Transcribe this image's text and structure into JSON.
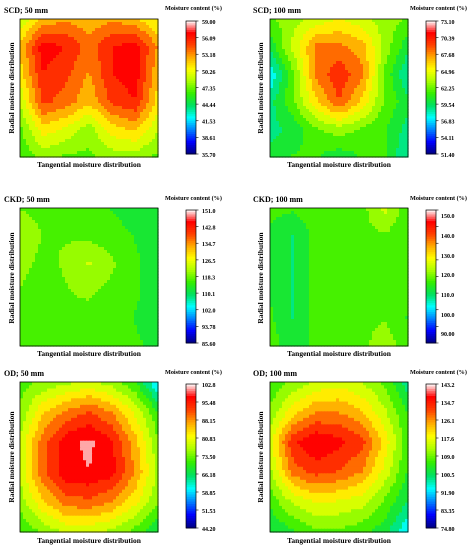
{
  "figure": {
    "colorbar_colors": [
      "#000080",
      "#0000ff",
      "#0080ff",
      "#00ffff",
      "#00e060",
      "#33ee00",
      "#aaff00",
      "#ffff00",
      "#ffaa00",
      "#ff4000",
      "#ff0000",
      "#ffffff"
    ]
  },
  "chart_data": [
    {
      "type": "heatmap",
      "title": "SCD; 50 mm",
      "xlabel": "Tangential  moisture distribution",
      "ylabel": "Radial moisture distribution",
      "colorbar_title": "Moisture content (%)",
      "colorbar_ticks": [
        "59.00",
        "56.09",
        "53.18",
        "50.26",
        "47.35",
        "44.44",
        "41.53",
        "38.61",
        "35.70"
      ],
      "zlim": [
        35.7,
        59.0
      ],
      "grid": [
        [
          49,
          52,
          53,
          52,
          53,
          52,
          50
        ],
        [
          52,
          57,
          56,
          54,
          56,
          57,
          53
        ],
        [
          51,
          56,
          55,
          53,
          56,
          57,
          52
        ],
        [
          49,
          55,
          54,
          52,
          55,
          56,
          51
        ],
        [
          47,
          51,
          50,
          48,
          51,
          52,
          49
        ],
        [
          46,
          48,
          47,
          47,
          48,
          48,
          47
        ]
      ]
    },
    {
      "type": "heatmap",
      "title": "SCD; 100 mm",
      "xlabel": "Tangential  moisture distribution",
      "ylabel": "Radial moisture distribution",
      "colorbar_title": "Moisture content (%)",
      "colorbar_ticks": [
        "73.10",
        "70.39",
        "67.68",
        "64.96",
        "62.25",
        "59.54",
        "56.83",
        "54.11",
        "51.40"
      ],
      "zlim": [
        51.4,
        73.1
      ],
      "grid": [
        [
          62,
          63,
          64,
          65,
          64,
          63,
          62
        ],
        [
          60,
          64,
          68,
          68,
          67,
          63,
          60
        ],
        [
          57,
          62,
          68,
          70,
          68,
          62,
          58
        ],
        [
          59,
          62,
          66,
          69,
          66,
          62,
          60
        ],
        [
          59,
          60,
          62,
          63,
          62,
          61,
          59
        ],
        [
          60,
          61,
          61,
          60,
          61,
          61,
          58
        ]
      ]
    },
    {
      "type": "heatmap",
      "title": "CKD; 50 mm",
      "xlabel": "Tangential  moisture distribution",
      "ylabel": "Radial moisture distribution",
      "colorbar_title": "Moisture content (%)",
      "colorbar_ticks": [
        "151.0",
        "142.8",
        "134.7",
        "126.5",
        "118.3",
        "110.1",
        "102.0",
        "93.78",
        "85.60"
      ],
      "zlim": [
        85.6,
        151.0
      ],
      "grid": [
        [
          118,
          117,
          117,
          116,
          114,
          112,
          110
        ],
        [
          122,
          118,
          118,
          117,
          116,
          114,
          111
        ],
        [
          120,
          117,
          119,
          123,
          119,
          115,
          112
        ],
        [
          118,
          116,
          118,
          119,
          117,
          115,
          112
        ],
        [
          116,
          117,
          118,
          117,
          116,
          114,
          112
        ],
        [
          115,
          117,
          118,
          118,
          117,
          115,
          113
        ]
      ]
    },
    {
      "type": "heatmap",
      "title": "CKD; 100 mm",
      "xlabel": "Tangential  moisture distribution",
      "ylabel": "Radial moisture distribution",
      "colorbar_title": "Moisture content (%)",
      "colorbar_ticks": [
        "150.0",
        "140.0",
        "130.0",
        "120.0",
        "110.0",
        "100.0",
        "90.00"
      ],
      "zlim": [
        85.0,
        152.0
      ],
      "grid": [
        [
          116,
          115,
          117,
          117,
          117,
          124,
          116
        ],
        [
          113,
          110,
          116,
          117,
          117,
          118,
          115
        ],
        [
          114,
          110,
          116,
          117,
          117,
          117,
          115
        ],
        [
          114,
          110,
          116,
          117,
          117,
          117,
          115
        ],
        [
          115,
          110,
          116,
          117,
          117,
          118,
          114
        ],
        [
          117,
          111,
          116,
          117,
          117,
          122,
          115
        ]
      ]
    },
    {
      "type": "heatmap",
      "title": "OD; 50 mm",
      "xlabel": "Tangential  moisture distribution",
      "ylabel": "Radial moisture distribution",
      "colorbar_title": "Moisture content (%)",
      "colorbar_ticks": [
        "102.8",
        "95.48",
        "88.15",
        "80.83",
        "73.50",
        "66.18",
        "58.85",
        "51.53",
        "44.20"
      ],
      "zlim": [
        44.2,
        102.8
      ],
      "grid": [
        [
          72,
          74,
          76,
          78,
          75,
          70,
          58
        ],
        [
          74,
          84,
          89,
          92,
          88,
          80,
          70
        ],
        [
          78,
          90,
          98,
          100,
          96,
          86,
          74
        ],
        [
          78,
          91,
          98,
          99,
          97,
          88,
          76
        ],
        [
          75,
          84,
          90,
          91,
          88,
          82,
          74
        ],
        [
          70,
          74,
          78,
          78,
          76,
          72,
          66
        ]
      ]
    },
    {
      "type": "heatmap",
      "title": "OD; 100 mm",
      "xlabel": "Tangential  moisture distribution",
      "ylabel": "Radial moisture distribution",
      "colorbar_title": "Moisture content (%)",
      "colorbar_ticks": [
        "143.2",
        "134.7",
        "126.1",
        "117.6",
        "109.0",
        "100.5",
        "91.90",
        "83.35",
        "74.80"
      ],
      "zlim": [
        74.8,
        143.2
      ],
      "grid": [
        [
          105,
          110,
          114,
          116,
          113,
          108,
          98
        ],
        [
          110,
          120,
          126,
          126,
          122,
          114,
          104
        ],
        [
          116,
          134,
          139,
          136,
          132,
          120,
          106
        ],
        [
          112,
          128,
          132,
          130,
          126,
          116,
          104
        ],
        [
          106,
          114,
          118,
          117,
          115,
          108,
          100
        ],
        [
          100,
          104,
          108,
          108,
          106,
          102,
          92
        ]
      ]
    }
  ]
}
